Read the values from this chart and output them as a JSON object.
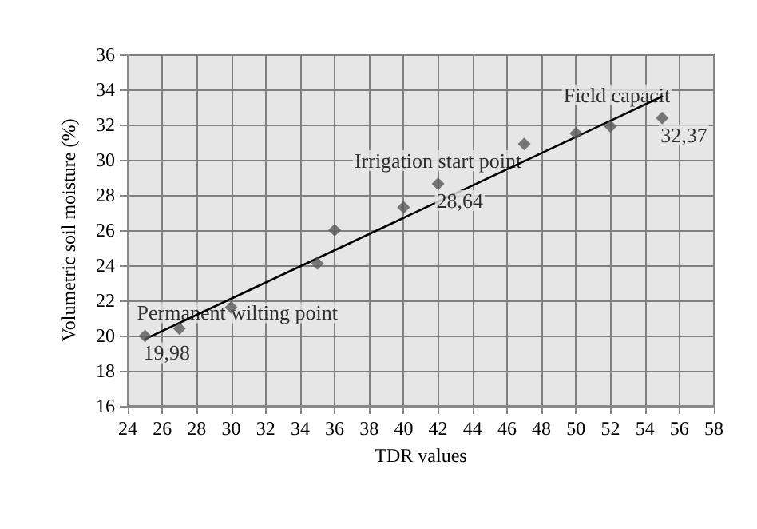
{
  "chart_data": {
    "type": "scatter",
    "xlabel": "TDR values",
    "ylabel": "Volumetric soil moisture (%)",
    "xlim": [
      24,
      58
    ],
    "xticks": [
      24,
      26,
      28,
      30,
      32,
      34,
      36,
      38,
      40,
      42,
      44,
      46,
      48,
      50,
      52,
      54,
      56,
      58
    ],
    "ylim": [
      16,
      36
    ],
    "yticks": [
      16,
      18,
      20,
      22,
      24,
      26,
      28,
      30,
      32,
      34,
      36
    ],
    "grid": true,
    "marker": "diamond",
    "series": [
      {
        "color": "#595959",
        "x": [
          25,
          27,
          30,
          35,
          36,
          40,
          42,
          47,
          50,
          52,
          55
        ],
        "values": [
          19.98,
          20.4,
          21.6,
          24.1,
          26,
          27.3,
          28.64,
          30.9,
          31.5,
          31.9,
          32.37
        ],
        "value_labels": [
          "19,98",
          null,
          null,
          null,
          null,
          null,
          "28,64",
          null,
          null,
          null,
          "32,37"
        ]
      },
      {
        "type": "line",
        "color": "#000000",
        "x": [
          25,
          55
        ],
        "values": [
          19.8,
          33.6
        ],
        "line_style": "solid",
        "marker": "none"
      }
    ],
    "annotations": [
      {
        "text": "Permanent wilting point",
        "x": 25,
        "y": 19.98
      },
      {
        "text": "Irrigation start point",
        "x": 42,
        "y": 28.64
      },
      {
        "text": "Field capacit",
        "x": 55,
        "y": 32.37
      }
    ]
  }
}
